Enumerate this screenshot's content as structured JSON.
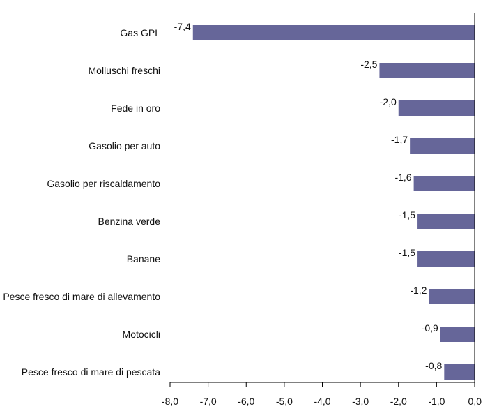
{
  "chart_data": {
    "type": "bar",
    "orientation": "horizontal",
    "title": "",
    "xlabel": "",
    "ylabel": "",
    "categories": [
      "Gas GPL",
      "Molluschi freschi",
      "Fede in oro",
      "Gasolio per auto",
      "Gasolio per riscaldamento",
      "Benzina verde",
      "Banane",
      "Pesce fresco di mare di allevamento",
      "Motocicli",
      "Pesce fresco di mare di pescata"
    ],
    "values": [
      -7.4,
      -2.5,
      -2.0,
      -1.7,
      -1.6,
      -1.5,
      -1.5,
      -1.2,
      -0.9,
      -0.8
    ],
    "value_labels": [
      "-7,4",
      "-2,5",
      "-2,0",
      "-1,7",
      "-1,6",
      "-1,5",
      "-1,5",
      "-1,2",
      "-0,9",
      "-0,8"
    ],
    "xlim": [
      -8.0,
      0.0
    ],
    "x_ticks": [
      -8.0,
      -7.0,
      -6.0,
      -5.0,
      -4.0,
      -3.0,
      -2.0,
      -1.0,
      0.0
    ],
    "x_tick_labels": [
      "-8,0",
      "-7,0",
      "-6,0",
      "-5,0",
      "-4,0",
      "-3,0",
      "-2,0",
      "-1,0",
      "0,0"
    ],
    "grid": false,
    "legend": "none",
    "bar_color": "#666699",
    "axis_color": "#000000"
  }
}
